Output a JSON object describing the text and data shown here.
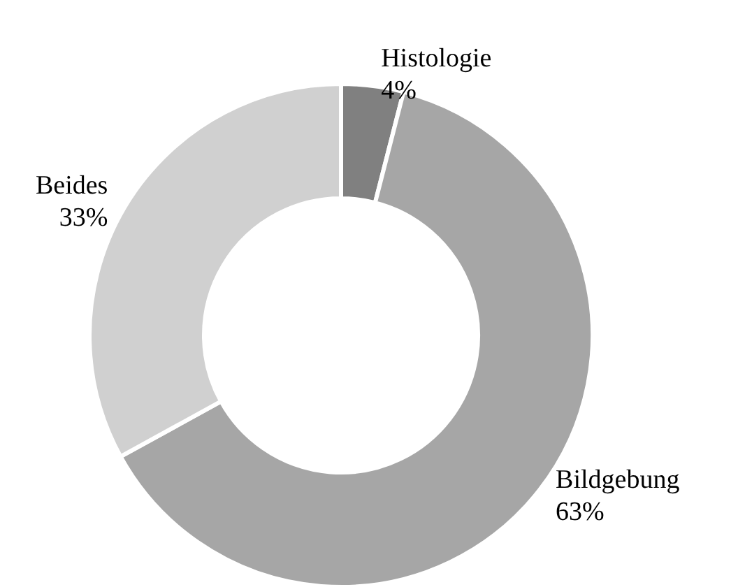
{
  "chart_data": {
    "type": "donut",
    "categories": [
      "Histologie",
      "Bildgebung",
      "Beides"
    ],
    "values": [
      4,
      63,
      33
    ],
    "value_labels": [
      "4%",
      "63%",
      "33%"
    ],
    "colors": [
      "#808080",
      "#a6a6a6",
      "#d0d0d0"
    ],
    "legend": false
  }
}
